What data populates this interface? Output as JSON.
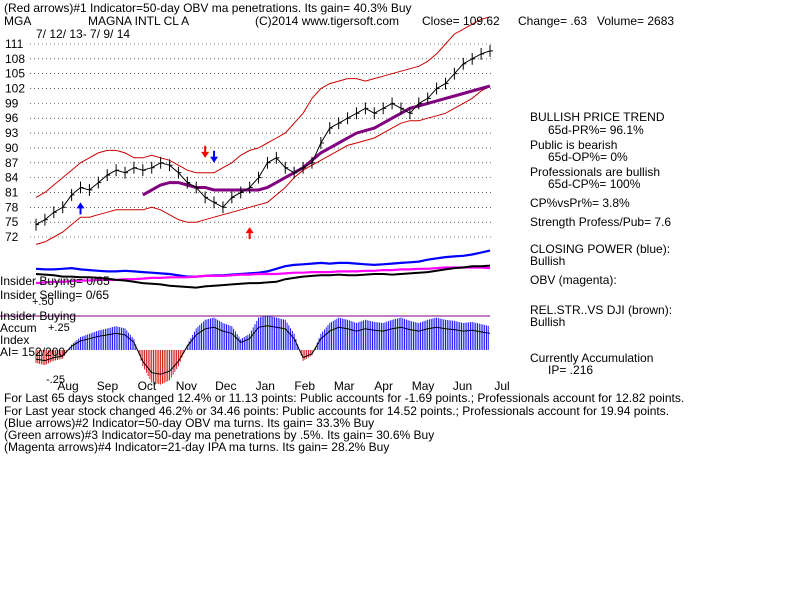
{
  "header": {
    "line1": "(Red arrows)#1 Indicator=50-day OBV ma penetrations. Its gain= 40.3% Buy",
    "symbol": "MGA",
    "company": "MAGNA INTL CL A",
    "copyright": "(C)2014 www.tigersoft.com",
    "close": "Close= 109.62",
    "change": "Change= .63",
    "volume": "Volume= 2683",
    "date_range": "7/ 12/ 13- 7/ 9/ 14"
  },
  "right_panel": {
    "trend_title": "BULLISH PRICE TREND",
    "pr": "65d-PR%= 96.1%",
    "public_title": "Public is bearish",
    "op": "65d-OP%= 0%",
    "pros_title": "Professionals are bullish",
    "cp": "65d-CP%= 100%",
    "cpvspr": "CP%vsPr%= 3.8%",
    "strength": "Strength Profess/Pub= 7.6",
    "closing_power": "CLOSING POWER (blue):",
    "closing_power_val": "Bullish",
    "obv": "OBV (magenta):",
    "relstr": "REL.STR..VS DJI (brown):",
    "relstr_val": "Bullish",
    "accum": "Currently Accumulation",
    "ip": "IP= .216"
  },
  "left_labels": {
    "insider_buying": "Insider Buying= 0/65",
    "insider_selling": "Insider Selling= 0/65",
    "insider_buying2": "Insider Buying",
    "accum": "Accum",
    "index": "Index",
    "ai": "AI= 152/200",
    "acc_p50": "+.50",
    "acc_p25": "+.25",
    "acc_m25": "-.25"
  },
  "footer": {
    "line1": "For Last 65 days stock changed  12.4% or  11.13 points:  Public accounts for -1.69 points.;  Professionals account for  12.82 points.",
    "line2": "For Last year stock changed  46.2% or  34.46 points:  Public accounts for  14.52 points.;  Professionals account for  19.94 points.",
    "line3": "(Blue arrows)#2 Indicator=50-day OBV ma turns. Its gain= 33.3% Buy",
    "line4": "(Green arrows)#3 Indicator=50-day ma penetrations by .5%. Its gain= 30.6% Buy",
    "line5": "(Magenta arrows)#4 Indicator=21-day IPA ma turns. Its gain= 28.2% Buy"
  },
  "colors": {
    "price": "#000000",
    "band": "#cc0000",
    "ma": "#800080",
    "closing_power": "#0000ff",
    "obv": "#ff00ff",
    "relstr": "#000000",
    "accum_pos": "#0000ff",
    "accum_neg": "#cc0000",
    "grid": "#000000"
  },
  "chart_data": {
    "type": "line",
    "title": "MAGNA INTL CL A",
    "y_ticks": [
      111,
      108,
      105,
      102,
      99,
      96,
      93,
      90,
      87,
      84,
      81,
      78,
      75,
      72
    ],
    "x_ticks": [
      "Aug",
      "Sep",
      "Oct",
      "Nov",
      "Dec",
      "Jan",
      "Feb",
      "Mar",
      "Apr",
      "May",
      "Jun",
      "Jul"
    ],
    "ylim": [
      70,
      112
    ],
    "grid": true,
    "price_close": [
      74.5,
      75.5,
      77,
      78,
      80.5,
      82,
      81.5,
      83,
      84.5,
      85.5,
      85,
      86,
      85.5,
      86,
      87,
      86.5,
      85,
      83,
      82,
      80,
      79,
      78,
      80,
      81,
      82,
      84,
      87,
      88,
      86,
      85,
      86,
      87,
      91,
      94,
      95,
      96,
      97,
      98,
      97,
      98,
      99,
      98,
      97,
      99,
      100,
      102,
      103,
      105,
      107,
      108,
      109,
      109.6
    ],
    "upper_band": [
      80,
      81,
      82.5,
      84,
      85.5,
      87,
      88,
      89,
      89.5,
      89.5,
      89,
      88,
      88,
      88.5,
      88,
      87.5,
      86.5,
      85.5,
      85,
      85,
      85,
      86,
      87,
      88.5,
      89.5,
      90,
      91,
      92,
      93,
      95,
      97,
      100,
      102,
      103,
      103.5,
      104,
      104,
      103.5,
      104,
      104.5,
      105,
      105.5,
      106,
      106.5,
      107.5,
      109,
      111,
      113,
      114,
      115,
      116,
      116.5
    ],
    "ma50": [
      null,
      null,
      null,
      null,
      null,
      null,
      null,
      null,
      null,
      null,
      null,
      null,
      80.5,
      81.5,
      82.5,
      83,
      83,
      82.5,
      82,
      82,
      81.5,
      81.5,
      81.5,
      81.5,
      81.5,
      81.5,
      82,
      83,
      84,
      85,
      86,
      87.5,
      89,
      90,
      91,
      92,
      93,
      93.5,
      94,
      95,
      96,
      97,
      98,
      98.5,
      99,
      99.5,
      100,
      100.5,
      101,
      101.5,
      102,
      102.5
    ],
    "lower_band": [
      70.5,
      71,
      72,
      73,
      74.5,
      76,
      76,
      76.5,
      77,
      77.5,
      77.5,
      77.5,
      77.5,
      78,
      77.5,
      76.5,
      75.5,
      75,
      75,
      75.5,
      76,
      76.5,
      77,
      77.5,
      78,
      78.5,
      79,
      80.5,
      82,
      84,
      85.5,
      86.5,
      87.5,
      88.5,
      89.5,
      90.5,
      91,
      91.5,
      92,
      93,
      94,
      95,
      95.5,
      95.5,
      96,
      96.5,
      97,
      98,
      99,
      100,
      101.5,
      102.5
    ],
    "closing_power": [
      48,
      47,
      47,
      48,
      49,
      47,
      46,
      45,
      44,
      44,
      45,
      44,
      43,
      42,
      41,
      40,
      38,
      36,
      36,
      37,
      38,
      38,
      39,
      40,
      41,
      42,
      44,
      48,
      52,
      54,
      55,
      56,
      57,
      56,
      57,
      57,
      56,
      55,
      54,
      55,
      56,
      57,
      58,
      59,
      62,
      64,
      66,
      67,
      68,
      70,
      73,
      76
    ],
    "obv": [
      26,
      27,
      28,
      28,
      29,
      30,
      30,
      31,
      31,
      31,
      32,
      32,
      33,
      34,
      34,
      35,
      35,
      35,
      36,
      37,
      37,
      37,
      38,
      39,
      39,
      40,
      40,
      40,
      41,
      42,
      42,
      43,
      43,
      43,
      44,
      44,
      44,
      45,
      45,
      46,
      46,
      47,
      47,
      48,
      48,
      49,
      50,
      50,
      50,
      50,
      50,
      49
    ],
    "relstr": [
      40,
      39,
      38,
      36,
      36,
      35,
      35,
      34,
      33,
      31,
      30,
      28,
      26,
      25,
      24,
      22,
      21,
      20,
      19,
      21,
      22,
      23,
      24,
      25,
      26,
      26,
      27,
      28,
      32,
      34,
      36,
      37,
      38,
      38,
      39,
      38,
      38,
      39,
      40,
      40,
      39,
      40,
      41,
      42,
      43,
      45,
      47,
      49,
      50,
      52,
      52,
      53
    ],
    "accum": [
      -0.12,
      -0.14,
      -0.1,
      -0.08,
      0.05,
      0.12,
      0.15,
      0.18,
      0.2,
      0.22,
      0.2,
      0.1,
      -0.15,
      -0.3,
      -0.32,
      -0.28,
      -0.15,
      0.05,
      0.2,
      0.28,
      0.3,
      0.25,
      0.22,
      0.1,
      0.15,
      0.3,
      0.32,
      0.3,
      0.28,
      0.15,
      -0.1,
      -0.05,
      0.15,
      0.25,
      0.3,
      0.28,
      0.25,
      0.28,
      0.26,
      0.25,
      0.28,
      0.3,
      0.27,
      0.25,
      0.28,
      0.3,
      0.28,
      0.27,
      0.25,
      0.26,
      0.24,
      0.22
    ],
    "arrows": [
      {
        "kind": "red-down",
        "index": 19,
        "price": 88
      },
      {
        "kind": "blue-down",
        "index": 20,
        "price": 87
      },
      {
        "kind": "red-up",
        "index": 24,
        "price": 74
      },
      {
        "kind": "blue-up",
        "index": 5,
        "price": 79
      }
    ]
  }
}
